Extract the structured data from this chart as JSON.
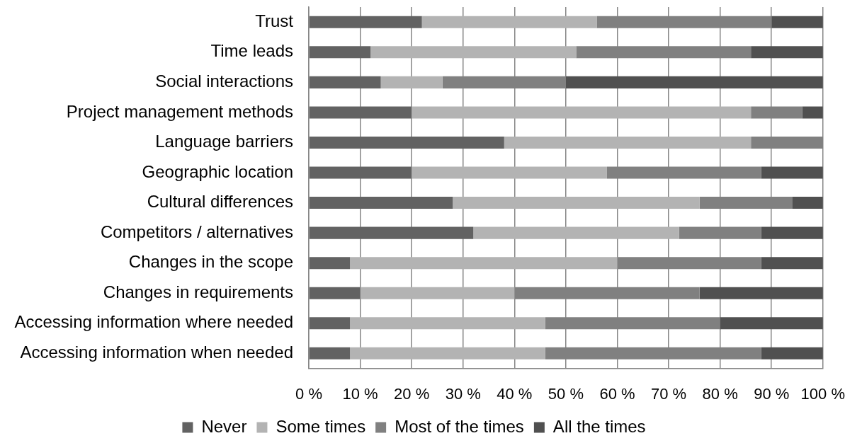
{
  "chart_data": {
    "type": "bar",
    "orientation": "horizontal",
    "stacked": true,
    "categories": [
      "Trust",
      "Time leads",
      "Social interactions",
      "Project management methods",
      "Language barriers",
      "Geographic location",
      "Cultural differences",
      "Competitors / alternatives",
      "Changes in the scope",
      "Changes in requirements",
      "Accessing information where needed",
      "Accessing information when needed"
    ],
    "series": [
      {
        "name": "Never",
        "color": "#626262",
        "values": [
          22,
          12,
          14,
          20,
          38,
          20,
          28,
          32,
          8,
          10,
          8,
          8
        ]
      },
      {
        "name": "Some times",
        "color": "#b3b3b3",
        "values": [
          34,
          40,
          12,
          66,
          48,
          38,
          48,
          40,
          52,
          30,
          38,
          38
        ]
      },
      {
        "name": "Most of the times",
        "color": "#808080",
        "values": [
          34,
          34,
          24,
          10,
          14,
          30,
          18,
          16,
          28,
          36,
          34,
          42
        ]
      },
      {
        "name": "All the times",
        "color": "#505050",
        "values": [
          10,
          14,
          50,
          4,
          0,
          12,
          6,
          12,
          12,
          24,
          20,
          12
        ]
      }
    ],
    "xlim": [
      0,
      100
    ],
    "xticks": [
      {
        "value": 0,
        "label": "0 %"
      },
      {
        "value": 10,
        "label": "10 %"
      },
      {
        "value": 20,
        "label": "20 %"
      },
      {
        "value": 30,
        "label": "30 %"
      },
      {
        "value": 40,
        "label": "40 %"
      },
      {
        "value": 50,
        "label": "50 %"
      },
      {
        "value": 60,
        "label": "60 %"
      },
      {
        "value": 70,
        "label": "70 %"
      },
      {
        "value": 80,
        "label": "80 %"
      },
      {
        "value": 90,
        "label": "90 %"
      },
      {
        "value": 100,
        "label": "100 %"
      }
    ],
    "grid": "x",
    "legend": "bottom"
  }
}
